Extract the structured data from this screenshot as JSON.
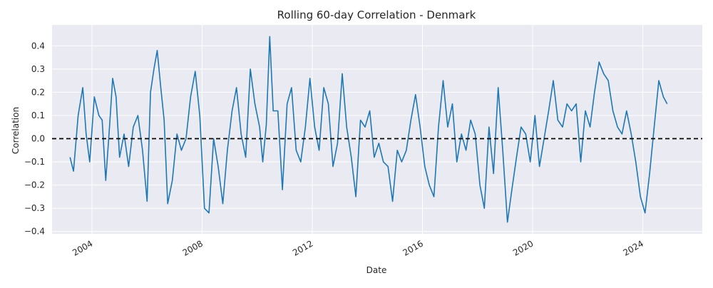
{
  "chart_data": {
    "type": "line",
    "title": "Rolling 60-day Correlation - Denmark",
    "xlabel": "Date",
    "ylabel": "Correlation",
    "xlim": [
      "2002-07-20",
      "2026-03-01"
    ],
    "ylim": [
      -0.41,
      0.49
    ],
    "grid": true,
    "legend": "none",
    "line_color": "#1f77b4",
    "background_color": "#eaeaf2",
    "grid_color": "#ffffff",
    "reference_line": {
      "y": 0.0,
      "style": "dashed",
      "color": "#000000"
    },
    "x_ticks": [
      {
        "label": "2004",
        "date": "2004-01-01"
      },
      {
        "label": "2008",
        "date": "2008-01-01"
      },
      {
        "label": "2012",
        "date": "2012-01-01"
      },
      {
        "label": "2016",
        "date": "2016-01-01"
      },
      {
        "label": "2020",
        "date": "2020-01-01"
      },
      {
        "label": "2024",
        "date": "2024-01-01"
      }
    ],
    "y_ticks": [
      {
        "label": "0.4",
        "value": 0.4
      },
      {
        "label": "0.3",
        "value": 0.3
      },
      {
        "label": "0.2",
        "value": 0.2
      },
      {
        "label": "0.1",
        "value": 0.1
      },
      {
        "label": "0.0",
        "value": 0.0
      },
      {
        "label": "−0.1",
        "value": -0.1
      },
      {
        "label": "−0.2",
        "value": -0.2
      },
      {
        "label": "−0.3",
        "value": -0.3
      },
      {
        "label": "−0.4",
        "value": -0.4
      }
    ],
    "series": [
      {
        "x": [
          "2003-03-15",
          "2003-05-01",
          "2003-07-01",
          "2003-09-01",
          "2003-10-15",
          "2003-12-01",
          "2004-02-01",
          "2004-04-01",
          "2004-05-15",
          "2004-07-01",
          "2004-08-20",
          "2004-10-01",
          "2004-11-15",
          "2005-01-01",
          "2005-03-01",
          "2005-05-01",
          "2005-07-01",
          "2005-09-01",
          "2005-11-01",
          "2006-01-01",
          "2006-02-15",
          "2006-04-01",
          "2006-05-15",
          "2006-07-01",
          "2006-08-15",
          "2006-10-01",
          "2006-12-01",
          "2007-02-01",
          "2007-04-01",
          "2007-06-01",
          "2007-08-01",
          "2007-10-01",
          "2007-12-01",
          "2008-02-01",
          "2008-04-01",
          "2008-06-01",
          "2008-08-01",
          "2008-10-01",
          "2008-12-01",
          "2009-02-01",
          "2009-04-01",
          "2009-06-01",
          "2009-08-01",
          "2009-10-01",
          "2009-12-01",
          "2010-02-01",
          "2010-03-15",
          "2010-05-01",
          "2010-06-15",
          "2010-08-01",
          "2010-10-01",
          "2010-12-01",
          "2011-02-01",
          "2011-04-01",
          "2011-06-01",
          "2011-08-01",
          "2011-10-01",
          "2011-12-01",
          "2012-02-01",
          "2012-04-01",
          "2012-06-01",
          "2012-08-01",
          "2012-10-01",
          "2012-12-01",
          "2013-02-01",
          "2013-04-01",
          "2013-06-01",
          "2013-08-01",
          "2013-10-01",
          "2013-12-01",
          "2014-02-01",
          "2014-04-01",
          "2014-06-01",
          "2014-08-01",
          "2014-10-01",
          "2014-12-01",
          "2015-02-01",
          "2015-04-01",
          "2015-06-01",
          "2015-08-01",
          "2015-10-01",
          "2015-12-01",
          "2016-02-01",
          "2016-04-01",
          "2016-06-01",
          "2016-08-01",
          "2016-10-01",
          "2016-12-01",
          "2017-02-01",
          "2017-04-01",
          "2017-06-01",
          "2017-08-01",
          "2017-10-01",
          "2017-12-01",
          "2018-02-01",
          "2018-04-01",
          "2018-06-01",
          "2018-08-01",
          "2018-10-01",
          "2018-12-01",
          "2019-02-01",
          "2019-04-01",
          "2019-06-01",
          "2019-08-01",
          "2019-10-01",
          "2019-12-01",
          "2020-02-01",
          "2020-04-01",
          "2020-06-01",
          "2020-08-01",
          "2020-10-01",
          "2020-12-01",
          "2021-02-01",
          "2021-04-01",
          "2021-06-01",
          "2021-08-01",
          "2021-10-01",
          "2021-12-01",
          "2022-02-01",
          "2022-04-01",
          "2022-06-01",
          "2022-08-01",
          "2022-10-01",
          "2022-12-01",
          "2023-02-01",
          "2023-04-01",
          "2023-06-01",
          "2023-08-01",
          "2023-10-01",
          "2023-12-01",
          "2024-02-01",
          "2024-04-01",
          "2024-06-01",
          "2024-08-01",
          "2024-10-01",
          "2024-11-20"
        ],
        "values": [
          -0.08,
          -0.14,
          0.1,
          0.22,
          0.02,
          -0.1,
          0.18,
          0.1,
          0.08,
          -0.18,
          0.05,
          0.26,
          0.18,
          -0.08,
          0.02,
          -0.12,
          0.05,
          0.1,
          -0.05,
          -0.27,
          0.2,
          0.3,
          0.38,
          0.22,
          0.08,
          -0.28,
          -0.18,
          0.02,
          -0.05,
          0.0,
          0.18,
          0.29,
          0.1,
          -0.3,
          -0.32,
          0.0,
          -0.12,
          -0.28,
          -0.05,
          0.12,
          0.22,
          0.02,
          -0.08,
          0.3,
          0.15,
          0.05,
          -0.1,
          0.06,
          0.44,
          0.12,
          0.12,
          -0.22,
          0.15,
          0.22,
          -0.05,
          -0.1,
          0.05,
          0.26,
          0.05,
          -0.05,
          0.22,
          0.15,
          -0.12,
          -0.02,
          0.28,
          0.05,
          -0.08,
          -0.25,
          0.08,
          0.05,
          0.12,
          -0.08,
          -0.02,
          -0.1,
          -0.12,
          -0.27,
          -0.05,
          -0.1,
          -0.05,
          0.08,
          0.19,
          0.05,
          -0.12,
          -0.2,
          -0.25,
          0.05,
          0.25,
          0.05,
          0.15,
          -0.1,
          0.02,
          -0.05,
          0.08,
          0.02,
          -0.2,
          -0.3,
          0.05,
          -0.15,
          0.22,
          -0.05,
          -0.36,
          -0.22,
          -0.08,
          0.05,
          0.02,
          -0.1,
          0.1,
          -0.12,
          0.0,
          0.12,
          0.25,
          0.08,
          0.05,
          0.15,
          0.12,
          0.15,
          -0.1,
          0.12,
          0.05,
          0.2,
          0.33,
          0.28,
          0.25,
          0.12,
          0.05,
          0.02,
          0.12,
          0.02,
          -0.1,
          -0.25,
          -0.32,
          -0.15,
          0.05,
          0.25,
          0.18,
          0.15
        ]
      }
    ]
  }
}
